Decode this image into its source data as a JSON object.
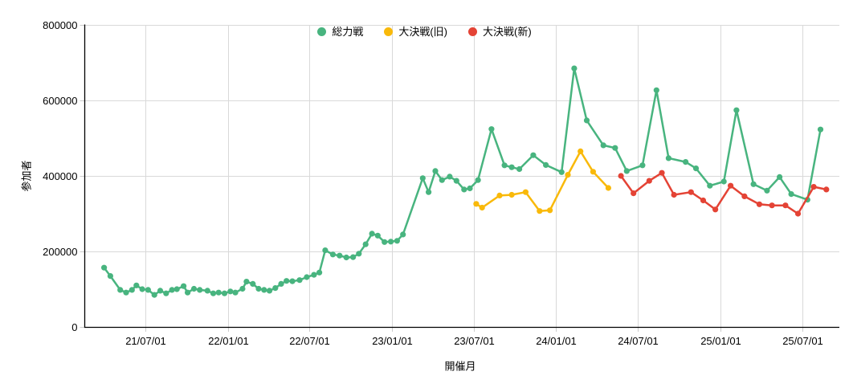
{
  "chart_data": {
    "type": "line",
    "title": "",
    "xlabel": "開催月",
    "ylabel": "参加者",
    "ylim": [
      0,
      800000
    ],
    "y_ticks": [
      0,
      200000,
      400000,
      600000,
      800000
    ],
    "y_tick_labels": [
      "0",
      "200000",
      "400000",
      "600000",
      "800000"
    ],
    "x_ticks": [
      {
        "label": "21/07/01",
        "date": "2021-07-01"
      },
      {
        "label": "22/01/01",
        "date": "2022-01-01"
      },
      {
        "label": "22/07/01",
        "date": "2022-07-01"
      },
      {
        "label": "23/01/01",
        "date": "2023-01-01"
      },
      {
        "label": "23/07/01",
        "date": "2023-07-01"
      },
      {
        "label": "24/01/01",
        "date": "2024-01-01"
      },
      {
        "label": "24/07/01",
        "date": "2024-07-01"
      },
      {
        "label": "25/01/01",
        "date": "2025-01-01"
      },
      {
        "label": "25/07/01",
        "date": "2025-07-01"
      }
    ],
    "x_domain": [
      "2021-02-16",
      "2025-09-22"
    ],
    "grid": true,
    "legend_position": "top-center",
    "colors": {
      "grid": "#d9d9d9",
      "axis": "#000000",
      "tick": "#cccccc",
      "background": "#ffffff"
    },
    "series": [
      {
        "name": "総力戦",
        "color": "#48b47f",
        "points": [
          [
            "2021-03-31",
            157000
          ],
          [
            "2021-04-14",
            135000
          ],
          [
            "2021-05-06",
            98000
          ],
          [
            "2021-05-19",
            91000
          ],
          [
            "2021-06-01",
            98000
          ],
          [
            "2021-06-11",
            110000
          ],
          [
            "2021-06-24",
            100000
          ],
          [
            "2021-07-07",
            98000
          ],
          [
            "2021-07-21",
            85000
          ],
          [
            "2021-08-03",
            96000
          ],
          [
            "2021-08-16",
            89000
          ],
          [
            "2021-08-29",
            98000
          ],
          [
            "2021-09-09",
            100000
          ],
          [
            "2021-09-24",
            108000
          ],
          [
            "2021-10-03",
            91000
          ],
          [
            "2021-10-17",
            101000
          ],
          [
            "2021-10-30",
            98000
          ],
          [
            "2021-11-16",
            96000
          ],
          [
            "2021-11-29",
            89000
          ],
          [
            "2021-12-11",
            91000
          ],
          [
            "2021-12-24",
            89000
          ],
          [
            "2022-01-06",
            94000
          ],
          [
            "2022-01-17",
            91000
          ],
          [
            "2022-02-02",
            101000
          ],
          [
            "2022-02-11",
            120000
          ],
          [
            "2022-02-25",
            114000
          ],
          [
            "2022-03-10",
            101000
          ],
          [
            "2022-03-22",
            98000
          ],
          [
            "2022-04-03",
            96000
          ],
          [
            "2022-04-16",
            103000
          ],
          [
            "2022-04-29",
            114000
          ],
          [
            "2022-05-11",
            122000
          ],
          [
            "2022-05-24",
            121000
          ],
          [
            "2022-06-09",
            124000
          ],
          [
            "2022-06-25",
            132000
          ],
          [
            "2022-07-11",
            138000
          ],
          [
            "2022-07-23",
            144000
          ],
          [
            "2022-08-05",
            203000
          ],
          [
            "2022-08-22",
            192000
          ],
          [
            "2022-09-06",
            189000
          ],
          [
            "2022-09-21",
            184000
          ],
          [
            "2022-10-06",
            185000
          ],
          [
            "2022-10-19",
            194000
          ],
          [
            "2022-11-03",
            219000
          ],
          [
            "2022-11-17",
            247000
          ],
          [
            "2022-11-30",
            242000
          ],
          [
            "2022-12-15",
            225000
          ],
          [
            "2022-12-29",
            226000
          ],
          [
            "2023-01-12",
            228000
          ],
          [
            "2023-01-25",
            245000
          ],
          [
            "2023-03-10",
            394000
          ],
          [
            "2023-03-23",
            357000
          ],
          [
            "2023-04-07",
            413000
          ],
          [
            "2023-04-22",
            389000
          ],
          [
            "2023-05-09",
            398000
          ],
          [
            "2023-05-24",
            387000
          ],
          [
            "2023-06-10",
            364000
          ],
          [
            "2023-06-23",
            367000
          ],
          [
            "2023-07-11",
            389000
          ],
          [
            "2023-08-10",
            524000
          ],
          [
            "2023-09-08",
            428000
          ],
          [
            "2023-09-24",
            423000
          ],
          [
            "2023-10-11",
            418000
          ],
          [
            "2023-11-11",
            455000
          ],
          [
            "2023-12-09",
            429000
          ],
          [
            "2024-01-13",
            410000
          ],
          [
            "2024-02-10",
            685000
          ],
          [
            "2024-03-09",
            547000
          ],
          [
            "2024-04-15",
            481000
          ],
          [
            "2024-05-11",
            474000
          ],
          [
            "2024-06-06",
            413000
          ],
          [
            "2024-07-11",
            428000
          ],
          [
            "2024-08-11",
            627000
          ],
          [
            "2024-09-07",
            447000
          ],
          [
            "2024-10-15",
            437000
          ],
          [
            "2024-11-07",
            420000
          ],
          [
            "2024-12-08",
            374000
          ],
          [
            "2025-01-08",
            385000
          ],
          [
            "2025-02-05",
            574000
          ],
          [
            "2025-03-15",
            378000
          ],
          [
            "2025-04-14",
            361000
          ],
          [
            "2025-05-12",
            397000
          ],
          [
            "2025-06-07",
            352000
          ],
          [
            "2025-07-13",
            337000
          ],
          [
            "2025-08-11",
            523000
          ]
        ]
      },
      {
        "name": "大決戦(旧)",
        "color": "#f9b90a",
        "points": [
          [
            "2023-07-07",
            326000
          ],
          [
            "2023-07-20",
            316000
          ],
          [
            "2023-08-28",
            348000
          ],
          [
            "2023-09-24",
            350000
          ],
          [
            "2023-10-25",
            357000
          ],
          [
            "2023-11-25",
            307000
          ],
          [
            "2023-12-18",
            309000
          ],
          [
            "2024-01-27",
            403000
          ],
          [
            "2024-02-24",
            465000
          ],
          [
            "2024-03-23",
            411000
          ],
          [
            "2024-04-26",
            368000
          ]
        ]
      },
      {
        "name": "大決戦(新)",
        "color": "#e44335",
        "points": [
          [
            "2024-05-24",
            400000
          ],
          [
            "2024-06-21",
            354000
          ],
          [
            "2024-07-26",
            387000
          ],
          [
            "2024-08-23",
            408000
          ],
          [
            "2024-09-19",
            350000
          ],
          [
            "2024-10-27",
            357000
          ],
          [
            "2024-11-23",
            335000
          ],
          [
            "2024-12-20",
            311000
          ],
          [
            "2025-01-23",
            374000
          ],
          [
            "2025-02-23",
            346000
          ],
          [
            "2025-03-28",
            325000
          ],
          [
            "2025-04-25",
            322000
          ],
          [
            "2025-05-25",
            322000
          ],
          [
            "2025-06-22",
            300000
          ],
          [
            "2025-07-27",
            371000
          ],
          [
            "2025-08-24",
            364000
          ]
        ]
      }
    ]
  }
}
